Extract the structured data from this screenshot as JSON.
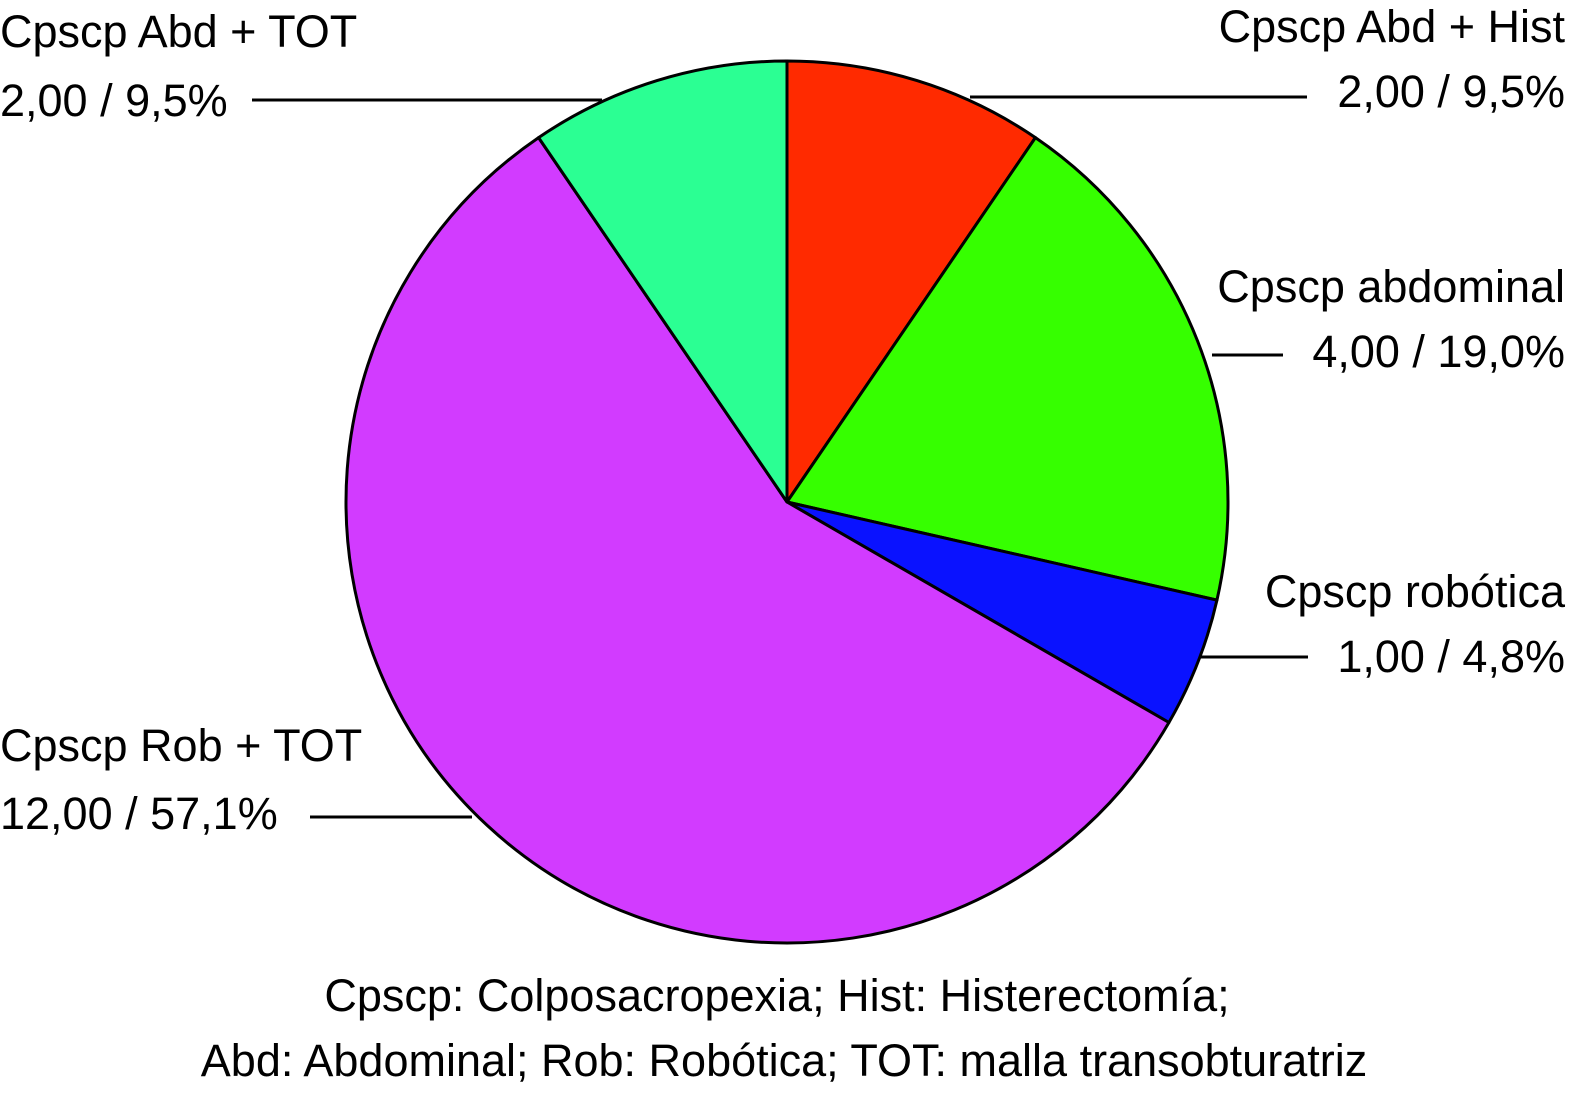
{
  "chart_data": {
    "type": "pie",
    "start_angle_deg": 0,
    "direction": "clockwise",
    "slices": [
      {
        "label": "Cpscp Abd + Hist",
        "value": 2,
        "value_label": "2,00 / 9,5%",
        "color": "#ff2a00"
      },
      {
        "label": "Cpscp abdominal",
        "value": 4,
        "value_label": "4,00 / 19,0%",
        "color": "#36ff00"
      },
      {
        "label": "Cpscp robótica",
        "value": 1,
        "value_label": "1,00 / 4,8%",
        "color": "#0a12ff"
      },
      {
        "label": "Cpscp Rob + TOT",
        "value": 12,
        "value_label": "12,00 / 57,1%",
        "color": "#d23bff"
      },
      {
        "label": "Cpscp Abd + TOT",
        "value": 2,
        "value_label": "2,00 / 9,5%",
        "color": "#2bff93"
      }
    ]
  },
  "footnote": {
    "line1": "Cpscp: Colposacropexia;  Hist: Histerectomía;",
    "line2": "Abd: Abdominal;  Rob: Robótica; TOT: malla transobturatriz"
  }
}
